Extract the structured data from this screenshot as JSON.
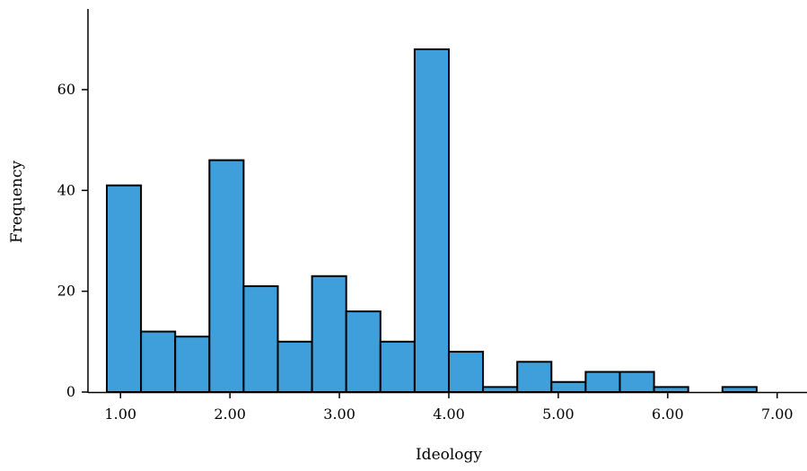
{
  "chart_data": {
    "type": "bar",
    "title": "",
    "xlabel": "Ideology",
    "ylabel": "Frequency",
    "bar_color": "#3f9fdb",
    "x_range": [
      0.875,
      7.125
    ],
    "ylim": [
      0,
      76
    ],
    "y_ticks": [
      {
        "value": 0,
        "label": "0"
      },
      {
        "value": 20,
        "label": "20"
      },
      {
        "value": 40,
        "label": "40"
      },
      {
        "value": 60,
        "label": "60"
      }
    ],
    "x_ticks": [
      {
        "value": 1,
        "label": "1.00"
      },
      {
        "value": 2,
        "label": "2.00"
      },
      {
        "value": 3,
        "label": "3.00"
      },
      {
        "value": 4,
        "label": "4.00"
      },
      {
        "value": 5,
        "label": "5.00"
      },
      {
        "value": 6,
        "label": "6.00"
      },
      {
        "value": 7,
        "label": "7.00"
      }
    ],
    "bins": [
      {
        "start": 0.875,
        "end": 1.1875,
        "count": 41
      },
      {
        "start": 1.1875,
        "end": 1.5,
        "count": 12
      },
      {
        "start": 1.5,
        "end": 1.8125,
        "count": 11
      },
      {
        "start": 1.8125,
        "end": 2.125,
        "count": 46
      },
      {
        "start": 2.125,
        "end": 2.4375,
        "count": 21
      },
      {
        "start": 2.4375,
        "end": 2.75,
        "count": 10
      },
      {
        "start": 2.75,
        "end": 3.0625,
        "count": 23
      },
      {
        "start": 3.0625,
        "end": 3.375,
        "count": 16
      },
      {
        "start": 3.375,
        "end": 3.6875,
        "count": 10
      },
      {
        "start": 3.6875,
        "end": 4.0,
        "count": 68
      },
      {
        "start": 4.0,
        "end": 4.3125,
        "count": 8
      },
      {
        "start": 4.3125,
        "end": 4.625,
        "count": 1
      },
      {
        "start": 4.625,
        "end": 4.9375,
        "count": 6
      },
      {
        "start": 4.9375,
        "end": 5.25,
        "count": 2
      },
      {
        "start": 5.25,
        "end": 5.5625,
        "count": 4
      },
      {
        "start": 5.5625,
        "end": 5.875,
        "count": 4
      },
      {
        "start": 5.875,
        "end": 6.1875,
        "count": 1
      },
      {
        "start": 6.1875,
        "end": 6.5,
        "count": 0
      },
      {
        "start": 6.5,
        "end": 6.8125,
        "count": 1
      }
    ]
  }
}
